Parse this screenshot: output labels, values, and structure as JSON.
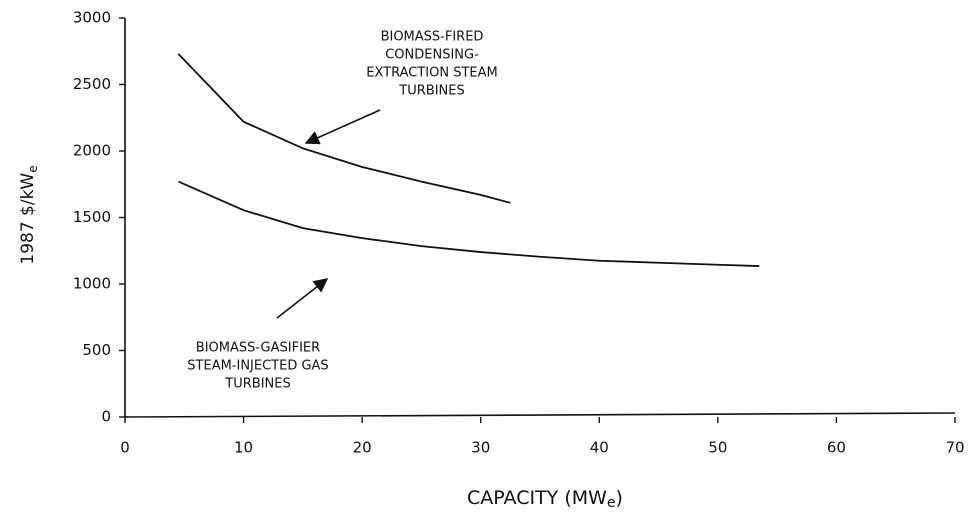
{
  "chart_data": {
    "type": "line",
    "ylabel": {
      "text": "1987 $/kW",
      "sub": "e"
    },
    "xlabel": {
      "text": "CAPACITY (MW",
      "sub": "e",
      "tail": ")"
    },
    "xlim": [
      0,
      70
    ],
    "xticks": [
      0,
      10,
      20,
      30,
      40,
      50,
      60,
      70
    ],
    "ylim": [
      0,
      3000
    ],
    "yticks": [
      0,
      500,
      1000,
      1500,
      2000,
      2500,
      3000
    ],
    "grid": false,
    "series": [
      {
        "color": "#111111",
        "x": [
          4.5,
          10,
          15,
          20,
          25,
          30,
          32.5
        ],
        "values": [
          2730,
          2220,
          2020,
          1880,
          1770,
          1670,
          1610
        ]
      },
      {
        "color": "#111111",
        "x": [
          4.5,
          10,
          15,
          20,
          25,
          30,
          35,
          40,
          45,
          50,
          53.5
        ],
        "values": [
          1770,
          1555,
          1420,
          1345,
          1285,
          1240,
          1205,
          1175,
          1160,
          1145,
          1135
        ]
      }
    ],
    "annotations": [
      {
        "lines": [
          "BIOMASS-FIRED",
          "CONDENSING-",
          "EXTRACTION STEAM",
          "TURBINES"
        ]
      },
      {
        "lines": [
          "BIOMASS-GASIFIER",
          "STEAM-INJECTED GAS",
          "TURBINES"
        ]
      }
    ]
  }
}
